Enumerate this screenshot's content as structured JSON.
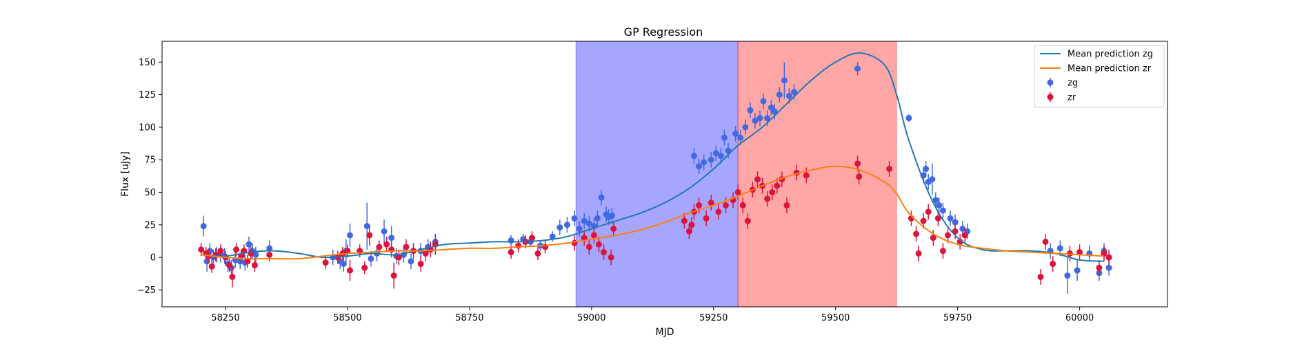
{
  "chart_data": {
    "type": "scatter",
    "title": "GP Regression",
    "xlabel": "MJD",
    "ylabel": "Flux [uJy]",
    "xlim": [
      58120,
      60180
    ],
    "ylim": [
      -38,
      166
    ],
    "xticks": [
      58250,
      58500,
      58750,
      59000,
      59250,
      59500,
      59750,
      60000
    ],
    "yticks": [
      -25,
      0,
      25,
      50,
      75,
      100,
      125,
      150
    ],
    "grid": false,
    "legend_position": "top-right",
    "shaded_regions": [
      {
        "x0": 58968,
        "x1": 59300,
        "color": "#0000ff",
        "alpha": 0.35
      },
      {
        "x0": 59300,
        "x1": 59625,
        "color": "#ff0000",
        "alpha": 0.35
      }
    ],
    "series": [
      {
        "name": "Mean prediction zg",
        "kind": "line",
        "color": "#1f77b4",
        "x": [
          58200,
          58250,
          58300,
          58350,
          58400,
          58450,
          58500,
          58550,
          58600,
          58650,
          58700,
          58750,
          58800,
          58850,
          58900,
          58950,
          59000,
          59050,
          59100,
          59150,
          59200,
          59250,
          59300,
          59350,
          59400,
          59450,
          59500,
          59550,
          59600,
          59625,
          59650,
          59700,
          59750,
          59800,
          59850,
          59900,
          59950,
          60000,
          60050
        ],
        "y": [
          2,
          1,
          4,
          5,
          3,
          0,
          1,
          3,
          2,
          6,
          10,
          11,
          12,
          12,
          13,
          16,
          22,
          28,
          34,
          42,
          53,
          68,
          86,
          100,
          118,
          136,
          150,
          157,
          148,
          125,
          90,
          42,
          15,
          6,
          5,
          5,
          3,
          -2,
          -3
        ]
      },
      {
        "name": "Mean prediction zr",
        "kind": "line",
        "color": "#ff7f0e",
        "x": [
          58200,
          58250,
          58300,
          58350,
          58400,
          58450,
          58500,
          58550,
          58600,
          58650,
          58700,
          58750,
          58800,
          58850,
          58900,
          58950,
          59000,
          59050,
          59100,
          59150,
          59200,
          59250,
          59300,
          59350,
          59400,
          59450,
          59500,
          59550,
          59600,
          59625,
          59650,
          59700,
          59750,
          59800,
          59850,
          59900,
          59950,
          60000,
          60050
        ],
        "y": [
          2,
          0,
          -1,
          -1,
          -1,
          1,
          3,
          4,
          5,
          5,
          6,
          7,
          7,
          8,
          9,
          11,
          14,
          17,
          21,
          27,
          34,
          40,
          47,
          55,
          62,
          67,
          70,
          67,
          58,
          49,
          34,
          18,
          10,
          7,
          5,
          4,
          3,
          2,
          1
        ]
      },
      {
        "name": "zg",
        "kind": "errorbar",
        "color": "#4169e1",
        "x": [
          58205,
          58212,
          58218,
          58225,
          58232,
          58240,
          58248,
          58255,
          58262,
          58270,
          58280,
          58290,
          58298,
          58305,
          58312,
          58340,
          58470,
          58485,
          58492,
          58497,
          58505,
          58540,
          58548,
          58560,
          58575,
          58590,
          58600,
          58615,
          58630,
          58650,
          58665,
          58680,
          58835,
          58860,
          58875,
          58895,
          58920,
          58935,
          58950,
          58965,
          58975,
          58985,
          58995,
          59005,
          59012,
          59020,
          59030,
          59035,
          59042,
          59210,
          59220,
          59230,
          59245,
          59255,
          59265,
          59272,
          59280,
          59295,
          59305,
          59315,
          59325,
          59335,
          59345,
          59352,
          59360,
          59368,
          59375,
          59385,
          59395,
          59405,
          59415,
          59545,
          59650,
          59680,
          59685,
          59690,
          59698,
          59705,
          59712,
          59720,
          59735,
          59745,
          59760,
          59770,
          59940,
          59960,
          59975,
          59995,
          60020,
          60040,
          60050,
          60060
        ],
        "y": [
          24,
          -3,
          5,
          0,
          2,
          2,
          1,
          -5,
          -8,
          -2,
          -3,
          -4,
          10,
          5,
          2,
          7,
          0,
          -3,
          -5,
          5,
          17,
          24,
          -1,
          3,
          20,
          15,
          1,
          2,
          -3,
          5,
          8,
          12,
          13,
          14,
          12,
          9,
          16,
          23,
          25,
          30,
          22,
          28,
          26,
          24,
          30,
          46,
          33,
          31,
          32,
          78,
          70,
          73,
          75,
          80,
          78,
          92,
          82,
          95,
          92,
          100,
          113,
          105,
          107,
          120,
          107,
          115,
          112,
          125,
          136,
          124,
          127,
          145,
          107,
          63,
          68,
          58,
          60,
          44,
          40,
          36,
          30,
          27,
          22,
          20,
          5,
          7,
          -14,
          -10,
          3,
          -12,
          5,
          -8
        ],
        "yerr": [
          8,
          8,
          6,
          6,
          6,
          6,
          6,
          6,
          6,
          6,
          6,
          6,
          6,
          6,
          6,
          6,
          6,
          6,
          6,
          9,
          9,
          18,
          6,
          6,
          9,
          9,
          6,
          6,
          6,
          6,
          6,
          6,
          4,
          4,
          4,
          4,
          4,
          6,
          6,
          6,
          6,
          6,
          6,
          6,
          6,
          6,
          6,
          6,
          6,
          6,
          6,
          6,
          6,
          6,
          6,
          6,
          6,
          6,
          6,
          6,
          6,
          6,
          6,
          6,
          6,
          6,
          6,
          6,
          14,
          6,
          6,
          5,
          3,
          6,
          6,
          6,
          12,
          6,
          6,
          6,
          6,
          6,
          6,
          6,
          6,
          6,
          14,
          8,
          6,
          6,
          6,
          6
        ]
      },
      {
        "name": "zr",
        "kind": "errorbar",
        "color": "#dc143c",
        "x": [
          58200,
          58210,
          58215,
          58222,
          58230,
          58240,
          58250,
          58258,
          58264,
          58272,
          58282,
          58288,
          58295,
          58302,
          58310,
          58340,
          58455,
          58480,
          58490,
          58500,
          58505,
          58525,
          58535,
          58545,
          58565,
          58580,
          58590,
          58595,
          58605,
          58620,
          58635,
          58650,
          58660,
          58670,
          58680,
          58835,
          58850,
          58865,
          58878,
          58890,
          58905,
          58965,
          58985,
          58995,
          59005,
          59015,
          59025,
          59040,
          59045,
          59190,
          59200,
          59205,
          59210,
          59220,
          59235,
          59245,
          59260,
          59275,
          59290,
          59300,
          59310,
          59320,
          59330,
          59340,
          59350,
          59360,
          59370,
          59380,
          59390,
          59400,
          59420,
          59440,
          59545,
          59548,
          59610,
          59655,
          59665,
          59670,
          59680,
          59690,
          59700,
          59710,
          59720,
          59730,
          59745,
          59755,
          59765,
          59920,
          59930,
          59945,
          59980,
          60000,
          60040,
          60050,
          60060
        ],
        "y": [
          6,
          3,
          1,
          -7,
          2,
          5,
          0,
          -6,
          -15,
          6,
          1,
          5,
          -3,
          3,
          -6,
          2,
          -4,
          0,
          3,
          5,
          -10,
          5,
          -8,
          17,
          8,
          10,
          6,
          -14,
          0,
          8,
          5,
          -5,
          3,
          6,
          10,
          4,
          9,
          12,
          15,
          3,
          8,
          11,
          15,
          8,
          17,
          10,
          4,
          0,
          22,
          28,
          20,
          25,
          35,
          40,
          30,
          42,
          35,
          40,
          44,
          50,
          40,
          28,
          52,
          60,
          55,
          45,
          50,
          55,
          60,
          40,
          65,
          63,
          72,
          62,
          68,
          30,
          18,
          3,
          28,
          35,
          15,
          30,
          5,
          17,
          20,
          12,
          17,
          -15,
          12,
          -5,
          3,
          4,
          -8,
          3,
          0
        ],
        "yerr": [
          5,
          5,
          5,
          5,
          5,
          5,
          5,
          5,
          8,
          5,
          5,
          5,
          5,
          5,
          5,
          5,
          5,
          5,
          5,
          5,
          8,
          5,
          5,
          8,
          5,
          6,
          6,
          10,
          6,
          6,
          6,
          6,
          6,
          6,
          8,
          5,
          5,
          5,
          5,
          5,
          5,
          6,
          6,
          6,
          6,
          6,
          6,
          6,
          6,
          6,
          6,
          6,
          6,
          6,
          6,
          6,
          6,
          6,
          6,
          6,
          6,
          6,
          6,
          6,
          6,
          6,
          6,
          6,
          6,
          6,
          6,
          6,
          6,
          6,
          6,
          6,
          6,
          6,
          6,
          6,
          6,
          6,
          6,
          6,
          6,
          6,
          6,
          6,
          6,
          6,
          6,
          6,
          6,
          6,
          6
        ]
      }
    ]
  }
}
